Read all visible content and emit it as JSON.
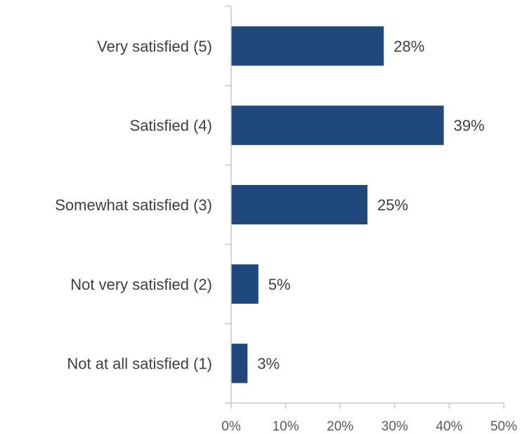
{
  "chart_data": {
    "type": "bar",
    "orientation": "horizontal",
    "categories": [
      "Very satisfied (5)",
      "Satisfied (4)",
      "Somewhat satisfied (3)",
      "Not very satisfied (2)",
      "Not at all satisfied (1)"
    ],
    "values": [
      28,
      39,
      25,
      5,
      3
    ],
    "value_labels": [
      "28%",
      "39%",
      "25%",
      "5%",
      "3%"
    ],
    "title": "",
    "xlabel": "",
    "ylabel": "",
    "xlim": [
      0,
      50
    ],
    "x_ticks": [
      0,
      10,
      20,
      30,
      40,
      50
    ],
    "x_tick_labels": [
      "0%",
      "10%",
      "20%",
      "30%",
      "40%",
      "50%"
    ],
    "grid": false,
    "legend": "none",
    "bar_color": "#1f497d"
  }
}
